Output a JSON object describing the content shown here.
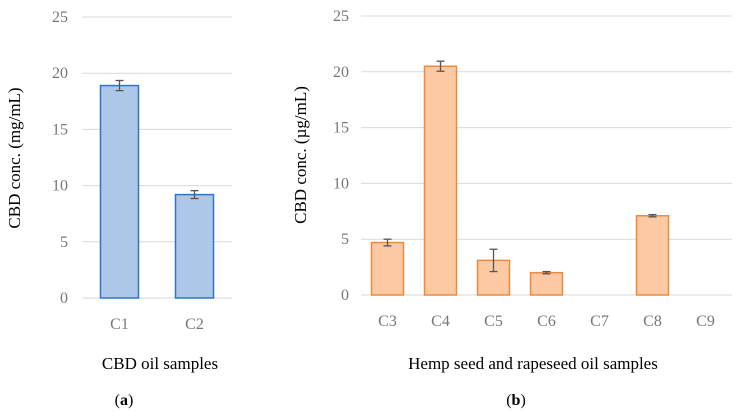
{
  "chart_data": [
    {
      "type": "bar",
      "panel_label": "a",
      "title": "",
      "xlabel": "CBD oil samples",
      "ylabel": "CBD conc. (mg/mL)",
      "ylim": [
        0,
        25
      ],
      "yticks": [
        0,
        5,
        10,
        15,
        20,
        25
      ],
      "grid": true,
      "categories": [
        "C1",
        "C2"
      ],
      "values": [
        18.9,
        9.2
      ],
      "errors": [
        0.45,
        0.35
      ],
      "fill_color": "#aec8ea",
      "edge_color": "#2e75c8"
    },
    {
      "type": "bar",
      "panel_label": "b",
      "title": "",
      "xlabel": "Hemp seed and rapeseed oil samples",
      "ylabel": "CBD conc. (µg/mL)",
      "ylim": [
        0,
        25
      ],
      "yticks": [
        0,
        5,
        10,
        15,
        20,
        25
      ],
      "grid": true,
      "categories": [
        "C3",
        "C4",
        "C5",
        "C6",
        "C7",
        "C8",
        "C9"
      ],
      "values": [
        4.7,
        20.5,
        3.1,
        2.0,
        0,
        7.1,
        0
      ],
      "errors": [
        0.3,
        0.45,
        1.0,
        0.1,
        0,
        0.1,
        0
      ],
      "fill_color": "#fcc9a3",
      "edge_color": "#ee8a3c"
    }
  ]
}
